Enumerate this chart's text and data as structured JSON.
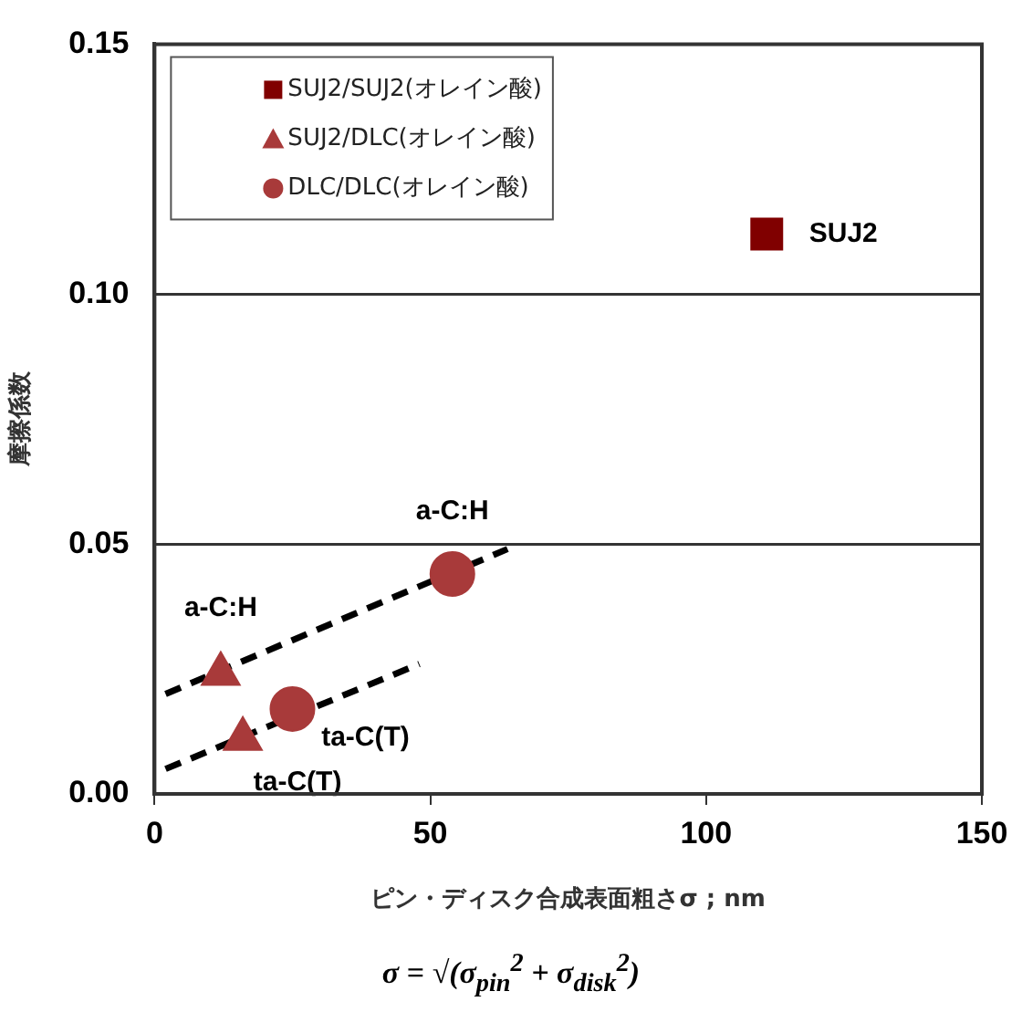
{
  "chart_data": {
    "type": "scatter",
    "xlabel": "ピン・ディスク合成表面粗さσ ; nm",
    "ylabel": "摩擦係数",
    "xlim": [
      0,
      150
    ],
    "xticks": [
      0,
      50,
      100,
      150
    ],
    "ylim": [
      0,
      0.15
    ],
    "yticks": [
      {
        "value": 0,
        "label": "0.00"
      },
      {
        "value": 0.05,
        "label": "0.05"
      },
      {
        "value": 0.1,
        "label": "0.10"
      },
      {
        "value": 0.15,
        "label": "0.15"
      }
    ],
    "grid": "y",
    "legend": "top left",
    "series": [
      {
        "name": "SUJ2/SUJ2(オレイン酸)",
        "color": "#800000",
        "marker": "square",
        "x": [
          111
        ],
        "values": [
          0.112
        ]
      },
      {
        "name": "SUJ2/DLC(オレイン酸)",
        "color": "#a83a3a",
        "marker": "triangle",
        "x": [
          12,
          16
        ],
        "values": [
          0.024,
          0.011
        ]
      },
      {
        "name": "DLC/DLC(オレイン酸)",
        "color": "#a83a3a",
        "marker": "circle",
        "x": [
          54,
          25
        ],
        "values": [
          0.044,
          0.017
        ]
      },
      {
        "type": "line",
        "color": "#000000",
        "marker": "none",
        "line_style": "dashed",
        "x": [
          2,
          64
        ],
        "values": [
          0.02,
          0.049
        ]
      },
      {
        "type": "line",
        "color": "#000000",
        "marker": "none",
        "line_style": "dashed",
        "x": [
          2,
          48
        ],
        "values": [
          0.005,
          0.026
        ]
      }
    ],
    "annotations": [
      {
        "text": "SUJ2",
        "x": 111,
        "y": 0.112
      },
      {
        "text": "a-C:H",
        "x": 54,
        "y": 0.044
      },
      {
        "text": "a-C:H",
        "x": 12,
        "y": 0.024
      },
      {
        "text": "ta-C(T)",
        "x": 25,
        "y": 0.017
      },
      {
        "text": "ta-C(T)",
        "x": 16,
        "y": 0.011
      },
      "σ = √(σ$_{pin}$$^{2}$ + σ$_{disk}$$^{2}$)"
    ]
  }
}
